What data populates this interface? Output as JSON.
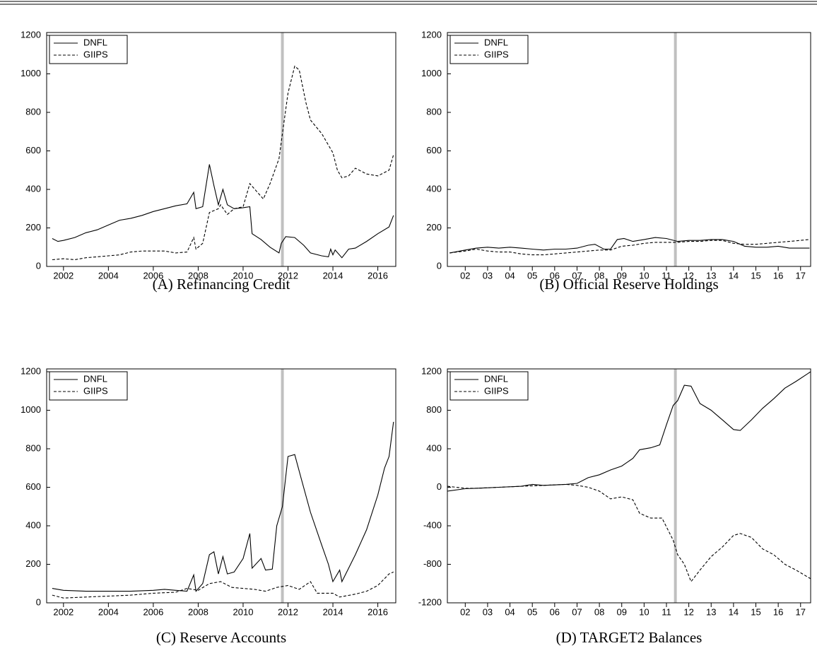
{
  "chart_data": [
    {
      "type": "line",
      "title": "(A) Refinancing Credit",
      "xlim": [
        2001.25,
        2016.8
      ],
      "ylim": [
        0,
        1200
      ],
      "xticks": [
        2002,
        2004,
        2006,
        2008,
        2010,
        2012,
        2014,
        2016
      ],
      "yticks": [
        0,
        200,
        400,
        600,
        800,
        1000,
        1200
      ],
      "legend": "upper left",
      "vline": 2011.75,
      "vline_color": "#c0c0c0",
      "series": [
        {
          "name": "DNFL",
          "color": "#000000",
          "style": "solid",
          "x": [
            2001.5,
            2001.75,
            2002,
            2002.5,
            2003,
            2003.5,
            2004,
            2004.5,
            2005,
            2005.5,
            2006,
            2006.5,
            2007,
            2007.5,
            2007.8,
            2007.9,
            2008.2,
            2008.5,
            2008.7,
            2008.9,
            2009.1,
            2009.3,
            2009.6,
            2010,
            2010.3,
            2010.4,
            2010.8,
            2011.2,
            2011.6,
            2011.7,
            2011.9,
            2012.3,
            2012.7,
            2013,
            2013.5,
            2013.8,
            2013.9,
            2014,
            2014.1,
            2014.4,
            2014.7,
            2015,
            2015.5,
            2016,
            2016.5,
            2016.7
          ],
          "values": [
            145,
            130,
            135,
            150,
            175,
            190,
            215,
            240,
            250,
            265,
            285,
            300,
            315,
            325,
            385,
            300,
            310,
            530,
            420,
            320,
            400,
            320,
            300,
            305,
            310,
            170,
            140,
            100,
            70,
            120,
            155,
            150,
            110,
            70,
            55,
            50,
            90,
            60,
            85,
            45,
            90,
            95,
            130,
            170,
            205,
            265
          ]
        },
        {
          "name": "GIIPS",
          "color": "#000000",
          "style": "dashed",
          "x": [
            2001.5,
            2002,
            2002.5,
            2003,
            2003.5,
            2004,
            2004.5,
            2005,
            2005.5,
            2006,
            2006.5,
            2007,
            2007.5,
            2007.8,
            2007.9,
            2008.2,
            2008.5,
            2008.9,
            2009,
            2009.3,
            2009.6,
            2010,
            2010.3,
            2010.6,
            2010.9,
            2011.2,
            2011.6,
            2011.75,
            2012,
            2012.3,
            2012.5,
            2012.8,
            2013,
            2013.5,
            2014,
            2014.2,
            2014.4,
            2014.7,
            2015,
            2015.5,
            2016,
            2016.5,
            2016.7
          ],
          "values": [
            35,
            40,
            35,
            45,
            50,
            55,
            60,
            75,
            80,
            80,
            80,
            70,
            75,
            150,
            90,
            120,
            280,
            300,
            320,
            270,
            300,
            310,
            430,
            390,
            350,
            430,
            560,
            690,
            900,
            1040,
            1020,
            850,
            760,
            690,
            590,
            500,
            460,
            470,
            510,
            480,
            470,
            500,
            580
          ]
        }
      ]
    },
    {
      "type": "line",
      "title": "(B) Official Reserve Holdings",
      "xlim": [
        2001.7,
        2017.95
      ],
      "ylim": [
        0,
        1200
      ],
      "xticks": [
        {
          "value": 2002.5,
          "label": "02"
        },
        {
          "value": 2003.5,
          "label": "03"
        },
        {
          "value": 2004.5,
          "label": "04"
        },
        {
          "value": 2005.5,
          "label": "05"
        },
        {
          "value": 2006.5,
          "label": "06"
        },
        {
          "value": 2007.5,
          "label": "07"
        },
        {
          "value": 2008.5,
          "label": "08"
        },
        {
          "value": 2009.5,
          "label": "09"
        },
        {
          "value": 2010.5,
          "label": "10"
        },
        {
          "value": 2011.5,
          "label": "11"
        },
        {
          "value": 2012.5,
          "label": "12"
        },
        {
          "value": 2013.5,
          "label": "13"
        },
        {
          "value": 2014.5,
          "label": "14"
        },
        {
          "value": 2015.5,
          "label": "15"
        },
        {
          "value": 2016.5,
          "label": "16"
        },
        {
          "value": 2017.5,
          "label": "17"
        }
      ],
      "yticks": [
        0,
        200,
        400,
        600,
        800,
        1000,
        1200
      ],
      "legend": "upper left",
      "vline": 2011.9,
      "vline_color": "#c0c0c0",
      "series": [
        {
          "name": "DNFL",
          "color": "#000000",
          "style": "solid",
          "x": [
            2001.8,
            2002.5,
            2003,
            2003.5,
            2004,
            2004.5,
            2005,
            2005.5,
            2006,
            2006.5,
            2007,
            2007.5,
            2008,
            2008.3,
            2008.7,
            2009,
            2009.3,
            2009.6,
            2010,
            2010.5,
            2011,
            2011.5,
            2012,
            2012.5,
            2013,
            2013.5,
            2014,
            2014.5,
            2015,
            2015.5,
            2016,
            2016.5,
            2017,
            2017.9
          ],
          "values": [
            70,
            85,
            95,
            100,
            95,
            100,
            95,
            90,
            85,
            90,
            90,
            95,
            110,
            115,
            90,
            90,
            140,
            145,
            130,
            140,
            150,
            145,
            130,
            135,
            135,
            140,
            140,
            130,
            105,
            100,
            100,
            105,
            95,
            95
          ]
        },
        {
          "name": "GIIPS",
          "color": "#000000",
          "style": "dashed",
          "x": [
            2001.8,
            2002.5,
            2003,
            2003.5,
            2004,
            2004.5,
            2005,
            2005.5,
            2006,
            2006.5,
            2007,
            2007.5,
            2008,
            2008.5,
            2009,
            2009.5,
            2010,
            2010.5,
            2011,
            2011.5,
            2012,
            2012.5,
            2013,
            2013.5,
            2014,
            2014.5,
            2015,
            2015.5,
            2016,
            2016.5,
            2017,
            2017.9
          ],
          "values": [
            70,
            80,
            90,
            80,
            75,
            75,
            65,
            60,
            60,
            65,
            70,
            75,
            80,
            85,
            85,
            105,
            110,
            120,
            125,
            125,
            125,
            130,
            130,
            135,
            135,
            120,
            115,
            115,
            120,
            125,
            130,
            140
          ]
        }
      ]
    },
    {
      "type": "line",
      "title": "(C) Reserve Accounts",
      "xlim": [
        2001.25,
        2016.8
      ],
      "ylim": [
        0,
        1200
      ],
      "xticks": [
        2002,
        2004,
        2006,
        2008,
        2010,
        2012,
        2014,
        2016
      ],
      "yticks": [
        0,
        200,
        400,
        600,
        800,
        1000,
        1200
      ],
      "legend": "upper left",
      "vline": 2011.75,
      "vline_color": "#c0c0c0",
      "series": [
        {
          "name": "DNFL",
          "color": "#000000",
          "style": "solid",
          "x": [
            2001.5,
            2002,
            2003,
            2004,
            2005,
            2006,
            2006.5,
            2007,
            2007.5,
            2007.8,
            2007.9,
            2008.2,
            2008.5,
            2008.7,
            2008.9,
            2009.1,
            2009.3,
            2009.6,
            2010,
            2010.3,
            2010.4,
            2010.8,
            2011,
            2011.3,
            2011.5,
            2011.75,
            2012,
            2012.3,
            2012.6,
            2013,
            2013.5,
            2013.8,
            2014,
            2014.3,
            2014.4,
            2014.7,
            2015,
            2015.5,
            2016,
            2016.3,
            2016.5,
            2016.7
          ],
          "values": [
            75,
            65,
            60,
            60,
            60,
            65,
            70,
            65,
            60,
            145,
            60,
            100,
            250,
            265,
            150,
            240,
            150,
            160,
            230,
            360,
            180,
            230,
            170,
            175,
            400,
            500,
            760,
            770,
            640,
            470,
            300,
            200,
            110,
            170,
            110,
            180,
            250,
            380,
            560,
            700,
            760,
            940
          ]
        },
        {
          "name": "GIIPS",
          "color": "#000000",
          "style": "dashed",
          "x": [
            2001.5,
            2002,
            2003,
            2004,
            2005,
            2006,
            2007,
            2007.5,
            2008,
            2008.5,
            2009,
            2009.5,
            2010,
            2010.5,
            2011,
            2011.5,
            2012,
            2012.5,
            2013,
            2013.3,
            2014,
            2014.3,
            2015,
            2015.5,
            2016,
            2016.5,
            2016.7
          ],
          "values": [
            40,
            25,
            30,
            35,
            40,
            50,
            55,
            75,
            65,
            100,
            110,
            80,
            75,
            70,
            60,
            80,
            90,
            70,
            110,
            50,
            50,
            30,
            45,
            60,
            90,
            150,
            160
          ]
        }
      ]
    },
    {
      "type": "line",
      "title": "(D) TARGET2 Balances",
      "xlim": [
        2001.7,
        2017.95
      ],
      "ylim": [
        -1200,
        1200
      ],
      "xticks": [
        {
          "value": 2002.5,
          "label": "02"
        },
        {
          "value": 2003.5,
          "label": "03"
        },
        {
          "value": 2004.5,
          "label": "04"
        },
        {
          "value": 2005.5,
          "label": "05"
        },
        {
          "value": 2006.5,
          "label": "06"
        },
        {
          "value": 2007.5,
          "label": "07"
        },
        {
          "value": 2008.5,
          "label": "08"
        },
        {
          "value": 2009.5,
          "label": "09"
        },
        {
          "value": 2010.5,
          "label": "10"
        },
        {
          "value": 2011.5,
          "label": "11"
        },
        {
          "value": 2012.5,
          "label": "12"
        },
        {
          "value": 2013.5,
          "label": "13"
        },
        {
          "value": 2014.5,
          "label": "14"
        },
        {
          "value": 2015.5,
          "label": "15"
        },
        {
          "value": 2016.5,
          "label": "16"
        },
        {
          "value": 2017.5,
          "label": "17"
        }
      ],
      "yticks": [
        -1200,
        -800,
        -400,
        0,
        400,
        800,
        1200
      ],
      "legend": "upper left",
      "vline": 2011.9,
      "vline_color": "#c0c0c0",
      "series": [
        {
          "name": "DNFL",
          "color": "#000000",
          "style": "solid",
          "x": [
            2001.7,
            2002.5,
            2003,
            2004,
            2005,
            2005.5,
            2006,
            2007,
            2007.5,
            2008,
            2008.5,
            2009,
            2009.5,
            2010,
            2010.3,
            2010.8,
            2011.2,
            2011.5,
            2011.8,
            2012,
            2012.3,
            2012.6,
            2013,
            2013.5,
            2014,
            2014.5,
            2014.8,
            2015.3,
            2015.8,
            2016.3,
            2016.8,
            2017.3,
            2017.95
          ],
          "values": [
            -40,
            -15,
            -10,
            0,
            10,
            30,
            20,
            30,
            40,
            100,
            130,
            180,
            220,
            300,
            390,
            410,
            440,
            650,
            850,
            900,
            1060,
            1050,
            870,
            800,
            700,
            600,
            590,
            700,
            820,
            920,
            1030,
            1100,
            1200
          ]
        },
        {
          "name": "GIIPS",
          "color": "#000000",
          "style": "dashed",
          "x": [
            2001.7,
            2002.5,
            2003,
            2004,
            2005,
            2006,
            2007,
            2007.5,
            2008,
            2008.5,
            2009,
            2009.5,
            2010,
            2010.3,
            2010.8,
            2011.3,
            2011.8,
            2012,
            2012.3,
            2012.6,
            2013,
            2013.5,
            2014,
            2014.5,
            2014.8,
            2015.3,
            2015.8,
            2016.3,
            2016.8,
            2017.3,
            2017.95
          ],
          "values": [
            10,
            -10,
            -10,
            0,
            10,
            20,
            30,
            20,
            0,
            -40,
            -120,
            -100,
            -130,
            -270,
            -320,
            -320,
            -550,
            -700,
            -800,
            -980,
            -860,
            -720,
            -620,
            -500,
            -480,
            -520,
            -640,
            -700,
            -800,
            -860,
            -950
          ]
        }
      ]
    }
  ]
}
